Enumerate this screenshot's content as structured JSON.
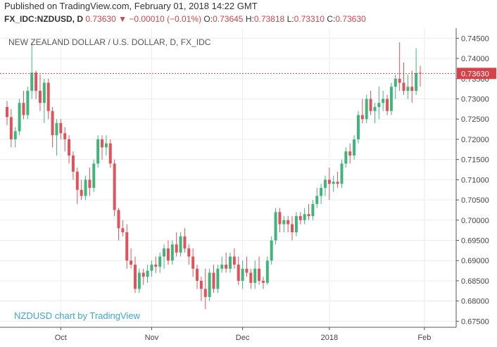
{
  "header": {
    "published": "Published on TradingView.com, February 01, 2018 14:22 GMT",
    "symbol_line": "FX_IDC:NZDUSD, D",
    "last": "0.73630",
    "change_arrow": "▼",
    "change": "−0.00010 (−0.01%)",
    "open_label": "O:",
    "open": "0.73645",
    "high_label": "H:",
    "high": "0.73818",
    "low_label": "L:",
    "low": "0.73310",
    "close_label": "C:",
    "close": "0.73630"
  },
  "colors": {
    "up": "#3fb57b",
    "down": "#e0535b",
    "grid": "#ececec",
    "axis": "#555555",
    "price_line": "#d4434a",
    "watermark": "#3ca5dc"
  },
  "chart_data": {
    "type": "candlestick",
    "title": "NEW ZEALAND DOLLAR / U.S. DOLLAR, D, FX_IDC",
    "watermark": "NZDUSD chart by TradingView",
    "ylim": [
      0.6735,
      0.7475
    ],
    "y_ticks": [
      "0.74500",
      "0.74000",
      "0.73500",
      "0.73000",
      "0.72500",
      "0.72000",
      "0.71500",
      "0.71000",
      "0.70500",
      "0.70000",
      "0.69500",
      "0.69000",
      "0.68500",
      "0.68000",
      "0.67500"
    ],
    "x_ticks": [
      {
        "label": "Oct",
        "index": 13
      },
      {
        "label": "Nov",
        "index": 35
      },
      {
        "label": "Dec",
        "index": 57
      },
      {
        "label": "2018",
        "index": 78
      },
      {
        "label": "Feb",
        "index": 101
      }
    ],
    "last_price": 0.7363,
    "last_price_label": "0.73630",
    "candles": [
      [
        0.728,
        0.7295,
        0.7235,
        0.7255
      ],
      [
        0.7255,
        0.7275,
        0.718,
        0.72
      ],
      [
        0.72,
        0.723,
        0.718,
        0.722
      ],
      [
        0.722,
        0.73,
        0.721,
        0.729
      ],
      [
        0.729,
        0.732,
        0.725,
        0.726
      ],
      [
        0.726,
        0.733,
        0.725,
        0.732
      ],
      [
        0.732,
        0.744,
        0.73,
        0.7365
      ],
      [
        0.7365,
        0.737,
        0.73,
        0.732
      ],
      [
        0.732,
        0.736,
        0.727,
        0.729
      ],
      [
        0.729,
        0.735,
        0.724,
        0.734
      ],
      [
        0.734,
        0.735,
        0.725,
        0.727
      ],
      [
        0.727,
        0.728,
        0.718,
        0.721
      ],
      [
        0.721,
        0.725,
        0.716,
        0.724
      ],
      [
        0.724,
        0.725,
        0.72,
        0.7215
      ],
      [
        0.7215,
        0.723,
        0.717,
        0.72
      ],
      [
        0.72,
        0.721,
        0.714,
        0.716
      ],
      [
        0.716,
        0.717,
        0.71,
        0.712
      ],
      [
        0.712,
        0.713,
        0.704,
        0.7075
      ],
      [
        0.7075,
        0.71,
        0.705,
        0.706
      ],
      [
        0.706,
        0.711,
        0.705,
        0.71
      ],
      [
        0.71,
        0.713,
        0.706,
        0.708
      ],
      [
        0.708,
        0.715,
        0.707,
        0.714
      ],
      [
        0.714,
        0.721,
        0.713,
        0.72
      ],
      [
        0.72,
        0.721,
        0.715,
        0.718
      ],
      [
        0.718,
        0.721,
        0.716,
        0.719
      ],
      [
        0.719,
        0.72,
        0.713,
        0.714
      ],
      [
        0.714,
        0.715,
        0.701,
        0.7025
      ],
      [
        0.7025,
        0.703,
        0.695,
        0.698
      ],
      [
        0.698,
        0.7,
        0.696,
        0.697
      ],
      [
        0.697,
        0.699,
        0.688,
        0.69
      ],
      [
        0.69,
        0.693,
        0.688,
        0.689
      ],
      [
        0.689,
        0.691,
        0.682,
        0.683
      ],
      [
        0.683,
        0.688,
        0.682,
        0.687
      ],
      [
        0.687,
        0.688,
        0.684,
        0.686
      ],
      [
        0.686,
        0.689,
        0.6845,
        0.6875
      ],
      [
        0.6875,
        0.69,
        0.686,
        0.689
      ],
      [
        0.689,
        0.691,
        0.687,
        0.6885
      ],
      [
        0.6885,
        0.692,
        0.687,
        0.691
      ],
      [
        0.691,
        0.694,
        0.688,
        0.693
      ],
      [
        0.693,
        0.695,
        0.689,
        0.69
      ],
      [
        0.69,
        0.695,
        0.689,
        0.694
      ],
      [
        0.694,
        0.697,
        0.691,
        0.692
      ],
      [
        0.692,
        0.697,
        0.691,
        0.696
      ],
      [
        0.696,
        0.698,
        0.692,
        0.693
      ],
      [
        0.693,
        0.694,
        0.689,
        0.691
      ],
      [
        0.691,
        0.693,
        0.686,
        0.688
      ],
      [
        0.688,
        0.689,
        0.683,
        0.685
      ],
      [
        0.685,
        0.686,
        0.68,
        0.683
      ],
      [
        0.683,
        0.688,
        0.678,
        0.681
      ],
      [
        0.681,
        0.688,
        0.68,
        0.687
      ],
      [
        0.687,
        0.689,
        0.682,
        0.683
      ],
      [
        0.683,
        0.689,
        0.682,
        0.688
      ],
      [
        0.688,
        0.691,
        0.687,
        0.689
      ],
      [
        0.689,
        0.692,
        0.687,
        0.688
      ],
      [
        0.688,
        0.692,
        0.687,
        0.691
      ],
      [
        0.691,
        0.693,
        0.688,
        0.689
      ],
      [
        0.689,
        0.691,
        0.684,
        0.685
      ],
      [
        0.685,
        0.69,
        0.683,
        0.688
      ],
      [
        0.688,
        0.691,
        0.686,
        0.687
      ],
      [
        0.687,
        0.688,
        0.683,
        0.6845
      ],
      [
        0.6845,
        0.69,
        0.683,
        0.688
      ],
      [
        0.688,
        0.691,
        0.684,
        0.685
      ],
      [
        0.685,
        0.686,
        0.683,
        0.6845
      ],
      [
        0.6845,
        0.691,
        0.684,
        0.69
      ],
      [
        0.69,
        0.696,
        0.689,
        0.695
      ],
      [
        0.695,
        0.703,
        0.694,
        0.702
      ],
      [
        0.702,
        0.703,
        0.697,
        0.699
      ],
      [
        0.699,
        0.701,
        0.697,
        0.7
      ],
      [
        0.7,
        0.701,
        0.697,
        0.699
      ],
      [
        0.699,
        0.701,
        0.695,
        0.697
      ],
      [
        0.697,
        0.702,
        0.696,
        0.701
      ],
      [
        0.701,
        0.702,
        0.699,
        0.7
      ],
      [
        0.7,
        0.703,
        0.699,
        0.7015
      ],
      [
        0.7015,
        0.704,
        0.7,
        0.701
      ],
      [
        0.701,
        0.705,
        0.7,
        0.704
      ],
      [
        0.704,
        0.708,
        0.703,
        0.706
      ],
      [
        0.706,
        0.709,
        0.704,
        0.708
      ],
      [
        0.708,
        0.711,
        0.706,
        0.71
      ],
      [
        0.71,
        0.713,
        0.705,
        0.709
      ],
      [
        0.709,
        0.711,
        0.707,
        0.7095
      ],
      [
        0.7095,
        0.712,
        0.708,
        0.709
      ],
      [
        0.709,
        0.715,
        0.708,
        0.714
      ],
      [
        0.714,
        0.718,
        0.713,
        0.717
      ],
      [
        0.717,
        0.719,
        0.714,
        0.716
      ],
      [
        0.716,
        0.721,
        0.715,
        0.72
      ],
      [
        0.72,
        0.727,
        0.719,
        0.726
      ],
      [
        0.726,
        0.73,
        0.724,
        0.725
      ],
      [
        0.725,
        0.731,
        0.724,
        0.73
      ],
      [
        0.73,
        0.732,
        0.726,
        0.727
      ],
      [
        0.727,
        0.729,
        0.724,
        0.728
      ],
      [
        0.728,
        0.733,
        0.725,
        0.729
      ],
      [
        0.729,
        0.732,
        0.727,
        0.73
      ],
      [
        0.73,
        0.731,
        0.726,
        0.727
      ],
      [
        0.727,
        0.734,
        0.726,
        0.733
      ],
      [
        0.733,
        0.736,
        0.73,
        0.735
      ],
      [
        0.735,
        0.744,
        0.732,
        0.734
      ],
      [
        0.734,
        0.739,
        0.731,
        0.732
      ],
      [
        0.732,
        0.736,
        0.73,
        0.733
      ],
      [
        0.733,
        0.737,
        0.729,
        0.732
      ],
      [
        0.732,
        0.7425,
        0.731,
        0.7364
      ],
      [
        0.73645,
        0.73818,
        0.7331,
        0.7363
      ]
    ]
  }
}
